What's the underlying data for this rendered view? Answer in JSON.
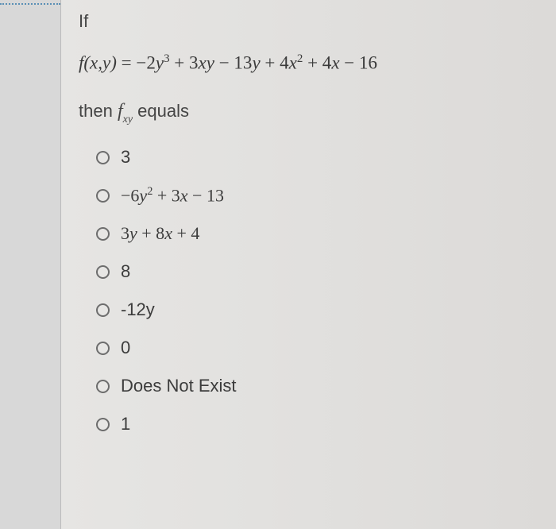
{
  "question": {
    "intro": "If",
    "equation_html": "f(x,y) <span class='up'>=</span> <span class='up'>−2</span>y<sup>3</sup> <span class='up'>+ 3</span>xy <span class='up'>− 13</span>y <span class='up'>+ 4</span>x<sup>2</sup> <span class='up'>+ 4</span>x <span class='up'>− 16</span>",
    "then_prefix": "then ",
    "then_f": "f",
    "then_sub": "xy",
    "then_suffix": " equals"
  },
  "options": [
    {
      "label_html": "3",
      "is_math": false
    },
    {
      "label_html": "<span class='n'>−6</span>y<sup>2</sup> <span class='n'>+ 3</span>x <span class='n'>− 13</span>",
      "is_math": true
    },
    {
      "label_html": "<span class='n'>3</span>y <span class='n'>+ 8</span>x <span class='n'>+ 4</span>",
      "is_math": true
    },
    {
      "label_html": "8",
      "is_math": false
    },
    {
      "label_html": "-12y",
      "is_math": false
    },
    {
      "label_html": "0",
      "is_math": false
    },
    {
      "label_html": "Does Not Exist",
      "is_math": false
    },
    {
      "label_html": "1",
      "is_math": false
    }
  ],
  "colors": {
    "page_bg": "#e2e1df",
    "body_bg": "#d8d8d8",
    "text": "#3a3a3a",
    "radio_border": "#6d6d6d",
    "dotted": "#5a8fb5"
  }
}
